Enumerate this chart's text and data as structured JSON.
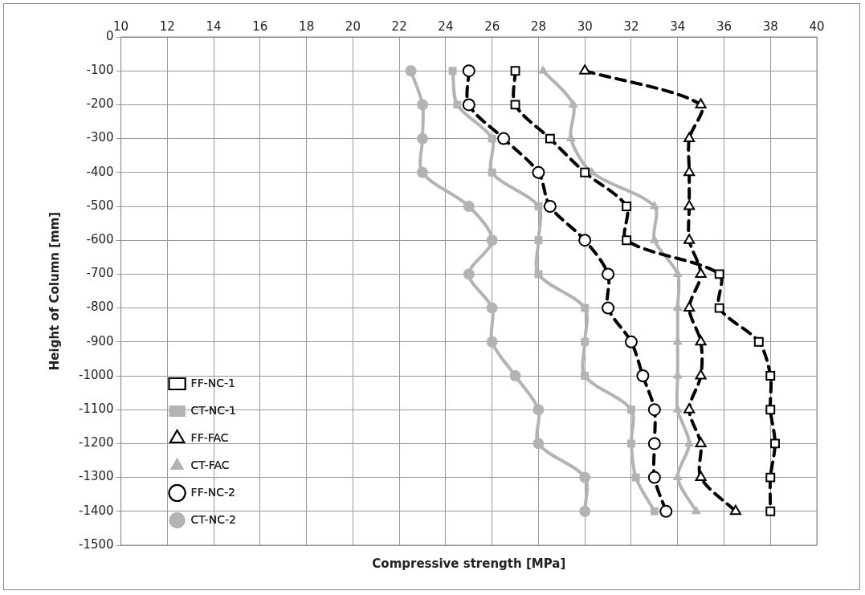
{
  "chart_data": {
    "type": "line",
    "xlabel": "Compressive strength [MPa]",
    "ylabel": "Height of Column [mm]",
    "xlim": [
      10,
      40
    ],
    "xticks": [
      10,
      12,
      14,
      16,
      18,
      20,
      22,
      24,
      26,
      28,
      30,
      32,
      34,
      36,
      38,
      40
    ],
    "ylim": [
      -1500,
      0
    ],
    "yticks": [
      -1500,
      -1400,
      -1300,
      -1200,
      -1100,
      -1000,
      -900,
      -800,
      -700,
      -600,
      -500,
      -400,
      -300,
      -200,
      -100,
      0
    ],
    "grid": true,
    "legend": "bottom left",
    "series": [
      {
        "name": "FF-NC-1",
        "color": "#000000",
        "marker": "square",
        "line_style": "dashed",
        "x": [
          27,
          27,
          28.5,
          30,
          31.8,
          31.8,
          35.8,
          35.8,
          37.5,
          38,
          38,
          38.2,
          38,
          38
        ],
        "values": [
          -100,
          -200,
          -300,
          -400,
          -500,
          -600,
          -700,
          -800,
          -900,
          -1000,
          -1100,
          -1200,
          -1300,
          -1400
        ]
      },
      {
        "name": "CT-NC-1",
        "color": "#b3b3b3",
        "marker": "square",
        "line_style": "solid",
        "x": [
          24.3,
          24.5,
          26,
          26,
          28,
          28,
          28,
          30,
          30,
          30,
          32,
          32,
          32.2,
          33
        ],
        "values": [
          -100,
          -200,
          -300,
          -400,
          -500,
          -600,
          -700,
          -800,
          -900,
          -1000,
          -1100,
          -1200,
          -1300,
          -1400
        ]
      },
      {
        "name": "FF-FAC",
        "color": "#000000",
        "marker": "triangle",
        "line_style": "dashed",
        "x": [
          30,
          35,
          34.5,
          34.5,
          34.5,
          34.5,
          35,
          34.5,
          35,
          35,
          34.5,
          35,
          35,
          36.5
        ],
        "values": [
          -100,
          -200,
          -300,
          -400,
          -500,
          -600,
          -700,
          -800,
          -900,
          -1000,
          -1100,
          -1200,
          -1300,
          -1400
        ]
      },
      {
        "name": "CT-FAC",
        "color": "#b3b3b3",
        "marker": "triangle",
        "line_style": "solid",
        "x": [
          28.2,
          29.5,
          29.4,
          30.3,
          33,
          33,
          34,
          34,
          34,
          34,
          34,
          34.5,
          34,
          34.8
        ],
        "values": [
          -100,
          -200,
          -300,
          -400,
          -500,
          -600,
          -700,
          -800,
          -900,
          -1000,
          -1100,
          -1200,
          -1300,
          -1400
        ]
      },
      {
        "name": "FF-NC-2",
        "color": "#000000",
        "marker": "circle",
        "line_style": "dashed",
        "x": [
          25,
          25,
          26.5,
          28,
          28.5,
          30,
          31,
          31,
          32,
          32.5,
          33,
          33,
          33,
          33.5
        ],
        "values": [
          -100,
          -200,
          -300,
          -400,
          -500,
          -600,
          -700,
          -800,
          -900,
          -1000,
          -1100,
          -1200,
          -1300,
          -1400
        ]
      },
      {
        "name": "CT-NC-2",
        "color": "#b3b3b3",
        "marker": "circle",
        "line_style": "solid",
        "x": [
          22.5,
          23,
          23,
          23,
          25,
          26,
          25,
          26,
          26,
          27,
          28,
          28,
          30,
          30
        ],
        "values": [
          -100,
          -200,
          -300,
          -400,
          -500,
          -600,
          -700,
          -800,
          -900,
          -1000,
          -1100,
          -1200,
          -1300,
          -1400
        ]
      }
    ]
  }
}
